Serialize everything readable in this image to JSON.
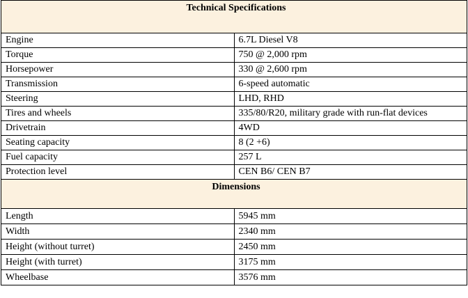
{
  "sections": [
    {
      "title": "Technical Specifications",
      "rows": [
        [
          "Engine",
          "6.7L Diesel V8"
        ],
        [
          "Torque",
          "750 @ 2,000 rpm"
        ],
        [
          "Horsepower",
          "330 @ 2,600 rpm"
        ],
        [
          "Transmission",
          "6-speed automatic"
        ],
        [
          "Steering",
          "LHD, RHD"
        ],
        [
          "Tires and wheels",
          "335/80/R20, military grade with run-flat devices"
        ],
        [
          "Drivetrain",
          "4WD"
        ],
        [
          "Seating capacity",
          "8 (2 +6)"
        ],
        [
          "Fuel capacity",
          "257 L"
        ],
        [
          "Protection level",
          "CEN B6/ CEN B7"
        ]
      ]
    },
    {
      "title": "Dimensions",
      "rows": [
        [
          "Length",
          "5945 mm"
        ],
        [
          "Width",
          "2340 mm"
        ],
        [
          "Height (without turret)",
          "2450 mm"
        ],
        [
          "Height (with turret)",
          "3175 mm"
        ],
        [
          "Wheelbase",
          "3576 mm"
        ]
      ]
    }
  ]
}
